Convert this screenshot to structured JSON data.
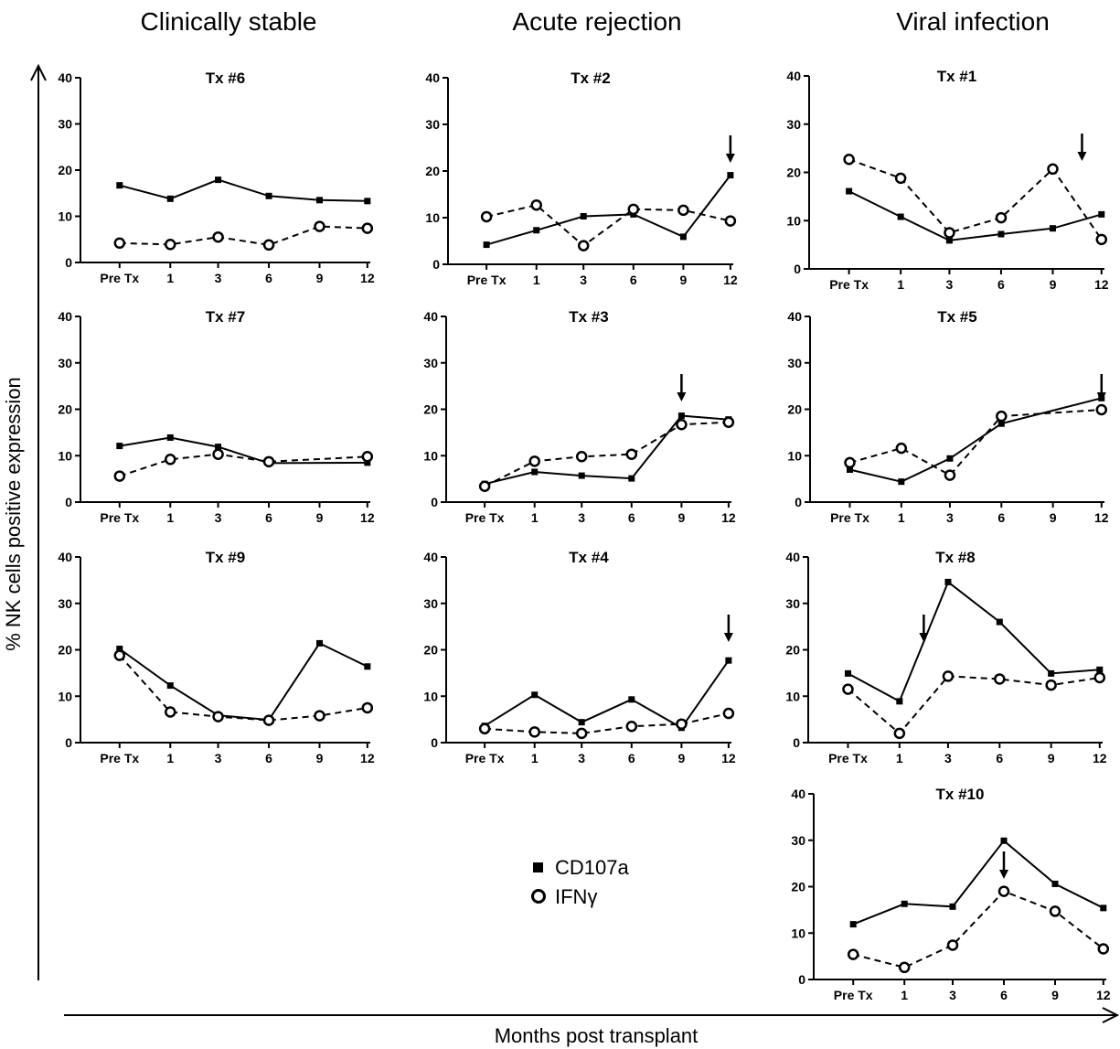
{
  "column_titles": [
    "Clinically stable",
    "Acute rejection",
    "Viral infection"
  ],
  "ylabel": "% NK cells positive expression",
  "xlabel": "Months post transplant",
  "legend": {
    "series": [
      {
        "name": "CD107a",
        "marker": "filled-square",
        "line": "solid"
      },
      {
        "name": "IFNγ",
        "marker": "open-circle",
        "line": "dashed"
      }
    ]
  },
  "colors": {
    "ink": "#000000",
    "background": "#ffffff"
  },
  "chart_data": [
    {
      "type": "line",
      "title": "Tx #6",
      "group": "Clinically stable",
      "categories": [
        "Pre Tx",
        "1",
        "3",
        "6",
        "9",
        "12"
      ],
      "yticks": [
        0,
        10,
        20,
        30,
        40
      ],
      "ylim": [
        0,
        40
      ],
      "series": [
        {
          "name": "CD107a",
          "values": [
            16.7,
            13.8,
            17.9,
            14.4,
            13.5,
            13.3
          ]
        },
        {
          "name": "IFNγ",
          "values": [
            4.2,
            3.9,
            5.5,
            3.8,
            7.8,
            7.4
          ]
        }
      ]
    },
    {
      "type": "line",
      "title": "Tx #2",
      "group": "Acute rejection",
      "categories": [
        "Pre Tx",
        "1",
        "3",
        "6",
        "9",
        "12"
      ],
      "yticks": [
        0,
        10,
        20,
        30,
        40
      ],
      "ylim": [
        0,
        40
      ],
      "arrow_at": 5,
      "series": [
        {
          "name": "CD107a",
          "values": [
            4.2,
            7.3,
            10.3,
            10.7,
            5.9,
            19.1
          ]
        },
        {
          "name": "IFNγ",
          "values": [
            10.2,
            12.7,
            4.0,
            11.8,
            11.6,
            9.3
          ]
        }
      ]
    },
    {
      "type": "line",
      "title": "Tx #1",
      "group": "Viral infection",
      "categories": [
        "Pre Tx",
        "1",
        "3",
        "6",
        "9",
        "12"
      ],
      "yticks": [
        0,
        10,
        20,
        30,
        40
      ],
      "ylim": [
        0,
        40
      ],
      "arrow_at": 4.6,
      "series": [
        {
          "name": "CD107a",
          "values": [
            16.1,
            10.8,
            5.9,
            7.2,
            8.4,
            11.3
          ]
        },
        {
          "name": "IFNγ",
          "values": [
            22.7,
            18.8,
            7.5,
            10.6,
            20.7,
            6.1
          ]
        }
      ]
    },
    {
      "type": "line",
      "title": "Tx #7",
      "group": "Clinically stable",
      "categories": [
        "Pre Tx",
        "1",
        "3",
        "6",
        "9",
        "12"
      ],
      "yticks": [
        0,
        10,
        20,
        30,
        40
      ],
      "ylim": [
        0,
        40
      ],
      "series": [
        {
          "name": "CD107a",
          "values": [
            12.1,
            13.9,
            11.9,
            8.4,
            null,
            8.5
          ]
        },
        {
          "name": "IFNγ",
          "values": [
            5.6,
            9.2,
            10.3,
            8.7,
            null,
            9.8
          ]
        }
      ]
    },
    {
      "type": "line",
      "title": "Tx #3",
      "group": "Acute rejection",
      "categories": [
        "Pre Tx",
        "1",
        "3",
        "6",
        "9",
        "12"
      ],
      "yticks": [
        0,
        10,
        20,
        30,
        40
      ],
      "ylim": [
        0,
        40
      ],
      "arrow_at": 4,
      "series": [
        {
          "name": "CD107a",
          "values": [
            3.9,
            6.5,
            5.7,
            5.1,
            18.6,
            17.8
          ]
        },
        {
          "name": "IFNγ",
          "values": [
            3.4,
            8.8,
            9.8,
            10.3,
            16.7,
            17.2
          ]
        }
      ]
    },
    {
      "type": "line",
      "title": "Tx #5",
      "group": "Viral infection",
      "categories": [
        "Pre Tx",
        "1",
        "3",
        "6",
        "9",
        "12"
      ],
      "yticks": [
        0,
        10,
        20,
        30,
        40
      ],
      "ylim": [
        0,
        40
      ],
      "arrow_at": 5,
      "series": [
        {
          "name": "CD107a",
          "values": [
            7.0,
            4.4,
            9.4,
            16.9,
            null,
            22.4
          ]
        },
        {
          "name": "IFNγ",
          "values": [
            8.5,
            11.6,
            5.8,
            18.5,
            null,
            19.9
          ]
        }
      ]
    },
    {
      "type": "line",
      "title": "Tx #9",
      "group": "Clinically stable",
      "categories": [
        "Pre Tx",
        "1",
        "3",
        "6",
        "9",
        "12"
      ],
      "yticks": [
        0,
        10,
        20,
        30,
        40
      ],
      "ylim": [
        0,
        40
      ],
      "series": [
        {
          "name": "CD107a",
          "values": [
            20.2,
            12.3,
            5.9,
            4.9,
            21.4,
            16.4
          ]
        },
        {
          "name": "IFNγ",
          "values": [
            18.8,
            6.6,
            5.6,
            4.8,
            5.8,
            7.5
          ]
        }
      ]
    },
    {
      "type": "line",
      "title": "Tx #4",
      "group": "Acute rejection",
      "categories": [
        "Pre Tx",
        "1",
        "3",
        "6",
        "9",
        "12"
      ],
      "yticks": [
        0,
        10,
        20,
        30,
        40
      ],
      "ylim": [
        0,
        40
      ],
      "arrow_at": 5,
      "series": [
        {
          "name": "CD107a",
          "values": [
            3.6,
            10.3,
            4.4,
            9.3,
            3.2,
            17.7
          ]
        },
        {
          "name": "IFNγ",
          "values": [
            3.0,
            2.3,
            2.0,
            3.5,
            4.0,
            6.3
          ]
        }
      ]
    },
    {
      "type": "line",
      "title": "Tx #8",
      "group": "Viral infection",
      "categories": [
        "Pre Tx",
        "1",
        "3",
        "6",
        "9",
        "12"
      ],
      "yticks": [
        0,
        10,
        20,
        30,
        40
      ],
      "ylim": [
        0,
        40
      ],
      "arrow_at": 1.5,
      "series": [
        {
          "name": "CD107a",
          "values": [
            14.9,
            8.9,
            34.6,
            26.0,
            14.9,
            15.7
          ]
        },
        {
          "name": "IFNγ",
          "values": [
            11.5,
            2.0,
            14.3,
            13.7,
            12.4,
            14.0
          ]
        }
      ]
    },
    {
      "type": "line",
      "title": "Tx #10",
      "group": "Viral infection",
      "categories": [
        "Pre Tx",
        "1",
        "3",
        "6",
        "9",
        "12"
      ],
      "yticks": [
        0,
        10,
        20,
        30,
        40
      ],
      "ylim": [
        0,
        40
      ],
      "arrow_at": 3,
      "series": [
        {
          "name": "CD107a",
          "values": [
            11.9,
            16.3,
            15.7,
            29.9,
            20.6,
            15.4
          ]
        },
        {
          "name": "IFNγ",
          "values": [
            5.4,
            2.6,
            7.4,
            19.0,
            14.7,
            6.6
          ]
        }
      ]
    }
  ]
}
